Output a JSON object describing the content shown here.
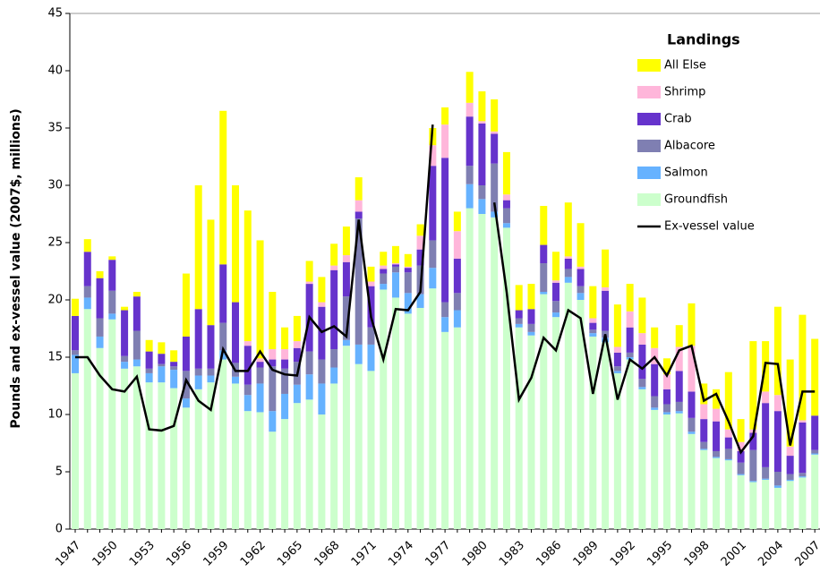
{
  "chart_data": {
    "type": "stacked-bar-line",
    "y_label": "Pounds and ex-vessel value (2007$, millions)",
    "legend_title": "Landings",
    "legend": "upper right",
    "categories": [
      "1947",
      null,
      null,
      "1950",
      null,
      null,
      "1953",
      null,
      null,
      "1956",
      null,
      null,
      "1959",
      null,
      null,
      "1962",
      null,
      null,
      "1965",
      null,
      null,
      "1968",
      null,
      null,
      "1971",
      null,
      null,
      "1974",
      null,
      null,
      "1977",
      null,
      null,
      "1980",
      null,
      null,
      "1983",
      null,
      null,
      "1986",
      null,
      null,
      "1989",
      null,
      null,
      "1992",
      null,
      null,
      "1995",
      null,
      null,
      "1998",
      null,
      null,
      "2001",
      null,
      null,
      "2004",
      null,
      null,
      "2007"
    ],
    "ylim": [
      0,
      45
    ],
    "yticks": [
      0,
      5,
      10,
      15,
      20,
      25,
      30,
      35,
      40,
      45
    ],
    "series": [
      {
        "name": "Groundfish",
        "color": "#ccffcc",
        "type": "bar",
        "values": [
          13.6,
          19.2,
          15.8,
          18.3,
          14.0,
          14.2,
          12.8,
          12.8,
          12.3,
          10.6,
          12.2,
          12.8,
          14.8,
          12.7,
          10.3,
          10.2,
          8.5,
          9.6,
          11.0,
          11.3,
          10.0,
          12.7,
          16.0,
          14.4,
          13.8,
          20.9,
          20.2,
          18.8,
          19.3,
          21.0,
          17.2,
          17.6,
          28.0,
          27.5,
          27.2,
          26.3,
          17.6,
          16.9,
          20.5,
          18.5,
          21.5,
          20.0,
          16.8,
          16.3,
          13.6,
          14.8,
          12.2,
          10.4,
          10.0,
          10.1,
          8.3,
          6.9,
          6.2,
          6.0,
          4.7,
          4.1,
          4.3,
          3.6,
          4.2,
          4.5,
          6.5
        ]
      },
      {
        "name": "Salmon",
        "color": "#66b2ff",
        "type": "bar",
        "values": [
          1.6,
          1.0,
          1.0,
          0.5,
          0.6,
          0.6,
          0.8,
          1.4,
          1.6,
          0.8,
          1.2,
          0.6,
          0.8,
          0.6,
          1.4,
          2.5,
          1.8,
          2.2,
          1.6,
          2.2,
          2.7,
          1.4,
          0.5,
          1.7,
          2.3,
          0.5,
          2.2,
          1.8,
          1.2,
          1.8,
          1.3,
          1.5,
          2.1,
          1.3,
          0.5,
          0.4,
          0.3,
          0.3,
          0.2,
          0.4,
          0.5,
          0.6,
          0.3,
          0.4,
          0.2,
          0.2,
          0.2,
          0.2,
          0.2,
          0.2,
          0.2,
          0.1,
          0.1,
          0.1,
          0.1,
          0.1,
          0.1,
          0.2,
          0.1,
          0.1,
          0.1
        ]
      },
      {
        "name": "Albacore",
        "color": "#7f7fb2",
        "type": "bar",
        "values": [
          0.4,
          1.0,
          1.6,
          2.0,
          0.5,
          2.5,
          0.4,
          0.2,
          0.3,
          2.4,
          0.6,
          0.6,
          2.4,
          1.2,
          0.9,
          1.4,
          3.9,
          2.2,
          2.0,
          2.0,
          2.1,
          1.6,
          3.8,
          11.0,
          1.5,
          0.9,
          0.5,
          1.8,
          2.5,
          2.4,
          1.3,
          1.5,
          1.6,
          1.2,
          4.2,
          1.3,
          0.5,
          0.7,
          2.5,
          1.0,
          0.7,
          0.6,
          0.3,
          0.6,
          0.4,
          0.4,
          0.7,
          1.0,
          0.7,
          0.8,
          1.2,
          0.6,
          0.5,
          0.9,
          1.0,
          2.7,
          1.0,
          1.2,
          0.5,
          0.3,
          0.3
        ]
      },
      {
        "name": "Crab",
        "color": "#6633cc",
        "type": "bar",
        "values": [
          3.0,
          3.0,
          3.5,
          2.7,
          4.0,
          3.0,
          1.5,
          0.9,
          0.4,
          3.0,
          5.2,
          3.8,
          5.1,
          5.3,
          3.4,
          0.5,
          0.6,
          0.8,
          1.2,
          5.9,
          4.6,
          6.9,
          3.0,
          0.6,
          3.6,
          0.4,
          0.2,
          0.4,
          1.4,
          6.5,
          12.6,
          3.0,
          4.3,
          5.4,
          2.6,
          0.7,
          0.7,
          1.3,
          1.6,
          1.6,
          0.9,
          1.5,
          0.6,
          3.5,
          1.2,
          2.2,
          3.0,
          2.8,
          1.3,
          2.7,
          2.3,
          2.0,
          2.6,
          1.0,
          1.0,
          1.5,
          5.6,
          5.3,
          1.6,
          4.4,
          3.0
        ]
      },
      {
        "name": "Shrimp",
        "color": "#ffb6da",
        "type": "bar",
        "values": [
          0,
          0,
          0,
          0,
          0,
          0,
          0,
          0,
          0,
          0,
          0,
          0,
          0,
          0,
          0.4,
          0.3,
          0.9,
          0.9,
          0.6,
          0.2,
          0.4,
          0.4,
          0.6,
          1.0,
          0.4,
          0.3,
          0.1,
          0.1,
          1.2,
          1.8,
          2.9,
          2.4,
          1.2,
          0.2,
          0.2,
          0.5,
          0,
          0,
          0,
          0.2,
          0.2,
          0.2,
          0.4,
          0.3,
          0.5,
          1.4,
          1.0,
          1.4,
          1.3,
          2.1,
          4.0,
          1.3,
          1.1,
          0.7,
          0.8,
          0.3,
          1.0,
          1.4,
          0.8,
          0.2,
          0
        ]
      },
      {
        "name": "All Else",
        "color": "#ffff00",
        "type": "bar",
        "values": [
          1.5,
          1.1,
          0.6,
          0.3,
          0.3,
          0.4,
          1.0,
          1.0,
          1.0,
          5.5,
          10.8,
          9.2,
          13.4,
          10.2,
          11.4,
          10.3,
          5.0,
          1.9,
          2.2,
          1.8,
          2.2,
          1.9,
          2.5,
          2.0,
          1.3,
          1.2,
          1.5,
          1.1,
          1.0,
          1.5,
          1.5,
          1.7,
          2.7,
          2.6,
          2.8,
          3.7,
          2.2,
          2.2,
          3.4,
          2.5,
          4.7,
          3.8,
          2.8,
          3.3,
          3.7,
          2.4,
          3.1,
          1.8,
          1.4,
          1.9,
          3.7,
          1.8,
          1.7,
          5.0,
          2.0,
          7.7,
          4.4,
          7.7,
          7.6,
          9.2,
          6.7
        ]
      },
      {
        "name": "Ex-vessel value",
        "color": "#000000",
        "type": "line",
        "values": [
          15.0,
          15.0,
          13.4,
          12.2,
          12.0,
          13.3,
          8.7,
          8.6,
          9.0,
          13.0,
          11.2,
          10.4,
          15.7,
          13.8,
          13.8,
          15.5,
          13.9,
          13.5,
          13.4,
          18.5,
          17.2,
          17.7,
          16.8,
          27.0,
          18.5,
          14.8,
          19.2,
          19.1,
          20.7,
          35.3,
          null,
          null,
          null,
          null,
          28.5,
          20.7,
          11.3,
          13.2,
          16.7,
          15.6,
          19.1,
          18.4,
          11.8,
          17.0,
          11.3,
          14.8,
          14.0,
          15.0,
          13.4,
          15.6,
          16.0,
          11.2,
          11.8,
          9.4,
          6.7,
          8.1,
          14.5,
          14.4,
          7.3,
          12.0,
          12.0
        ]
      }
    ]
  }
}
